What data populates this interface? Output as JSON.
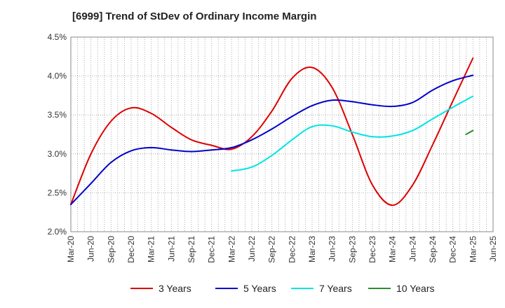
{
  "chart_data": {
    "type": "line",
    "title": "[6999]  Trend of StDev of Ordinary Income Margin",
    "xlabel": "",
    "ylabel": "",
    "x": [
      "Mar-20",
      "Jun-20",
      "Sep-20",
      "Dec-20",
      "Mar-21",
      "Jun-21",
      "Sep-21",
      "Dec-21",
      "Mar-22",
      "Jun-22",
      "Sep-22",
      "Dec-22",
      "Mar-23",
      "Jun-23",
      "Sep-23",
      "Dec-23",
      "Mar-24",
      "Jun-24",
      "Sep-24",
      "Dec-24",
      "Mar-25",
      "Jun-25"
    ],
    "ylim": [
      2.0,
      4.5
    ],
    "yticks": [
      "2.0%",
      "2.5%",
      "3.0%",
      "3.5%",
      "4.0%",
      "4.5%"
    ],
    "grid": true,
    "legend_position": "bottom",
    "series": [
      {
        "name": "3 Years",
        "color": "#dd0000",
        "values": [
          2.35,
          3.0,
          3.42,
          3.59,
          3.52,
          3.34,
          3.18,
          3.11,
          3.06,
          3.22,
          3.55,
          3.97,
          4.11,
          3.85,
          3.25,
          2.6,
          2.34,
          2.6,
          3.12,
          3.68,
          4.23,
          null
        ]
      },
      {
        "name": "5 Years",
        "color": "#0000cc",
        "values": [
          2.35,
          2.62,
          2.89,
          3.04,
          3.08,
          3.05,
          3.03,
          3.05,
          3.08,
          3.18,
          3.32,
          3.48,
          3.62,
          3.69,
          3.67,
          3.63,
          3.61,
          3.66,
          3.82,
          3.94,
          4.01,
          null
        ]
      },
      {
        "name": "7 Years",
        "color": "#00e5e5",
        "values": [
          null,
          null,
          null,
          null,
          null,
          null,
          null,
          null,
          2.78,
          2.83,
          2.98,
          3.18,
          3.35,
          3.36,
          3.28,
          3.22,
          3.23,
          3.3,
          3.45,
          3.6,
          3.74,
          null
        ]
      },
      {
        "name": "10 Years",
        "color": "#2e8b2e",
        "values": [
          null,
          null,
          null,
          null,
          null,
          null,
          null,
          null,
          null,
          null,
          null,
          null,
          null,
          null,
          null,
          null,
          null,
          null,
          null,
          null,
          3.3,
          null
        ],
        "start_value": 3.25
      }
    ]
  }
}
